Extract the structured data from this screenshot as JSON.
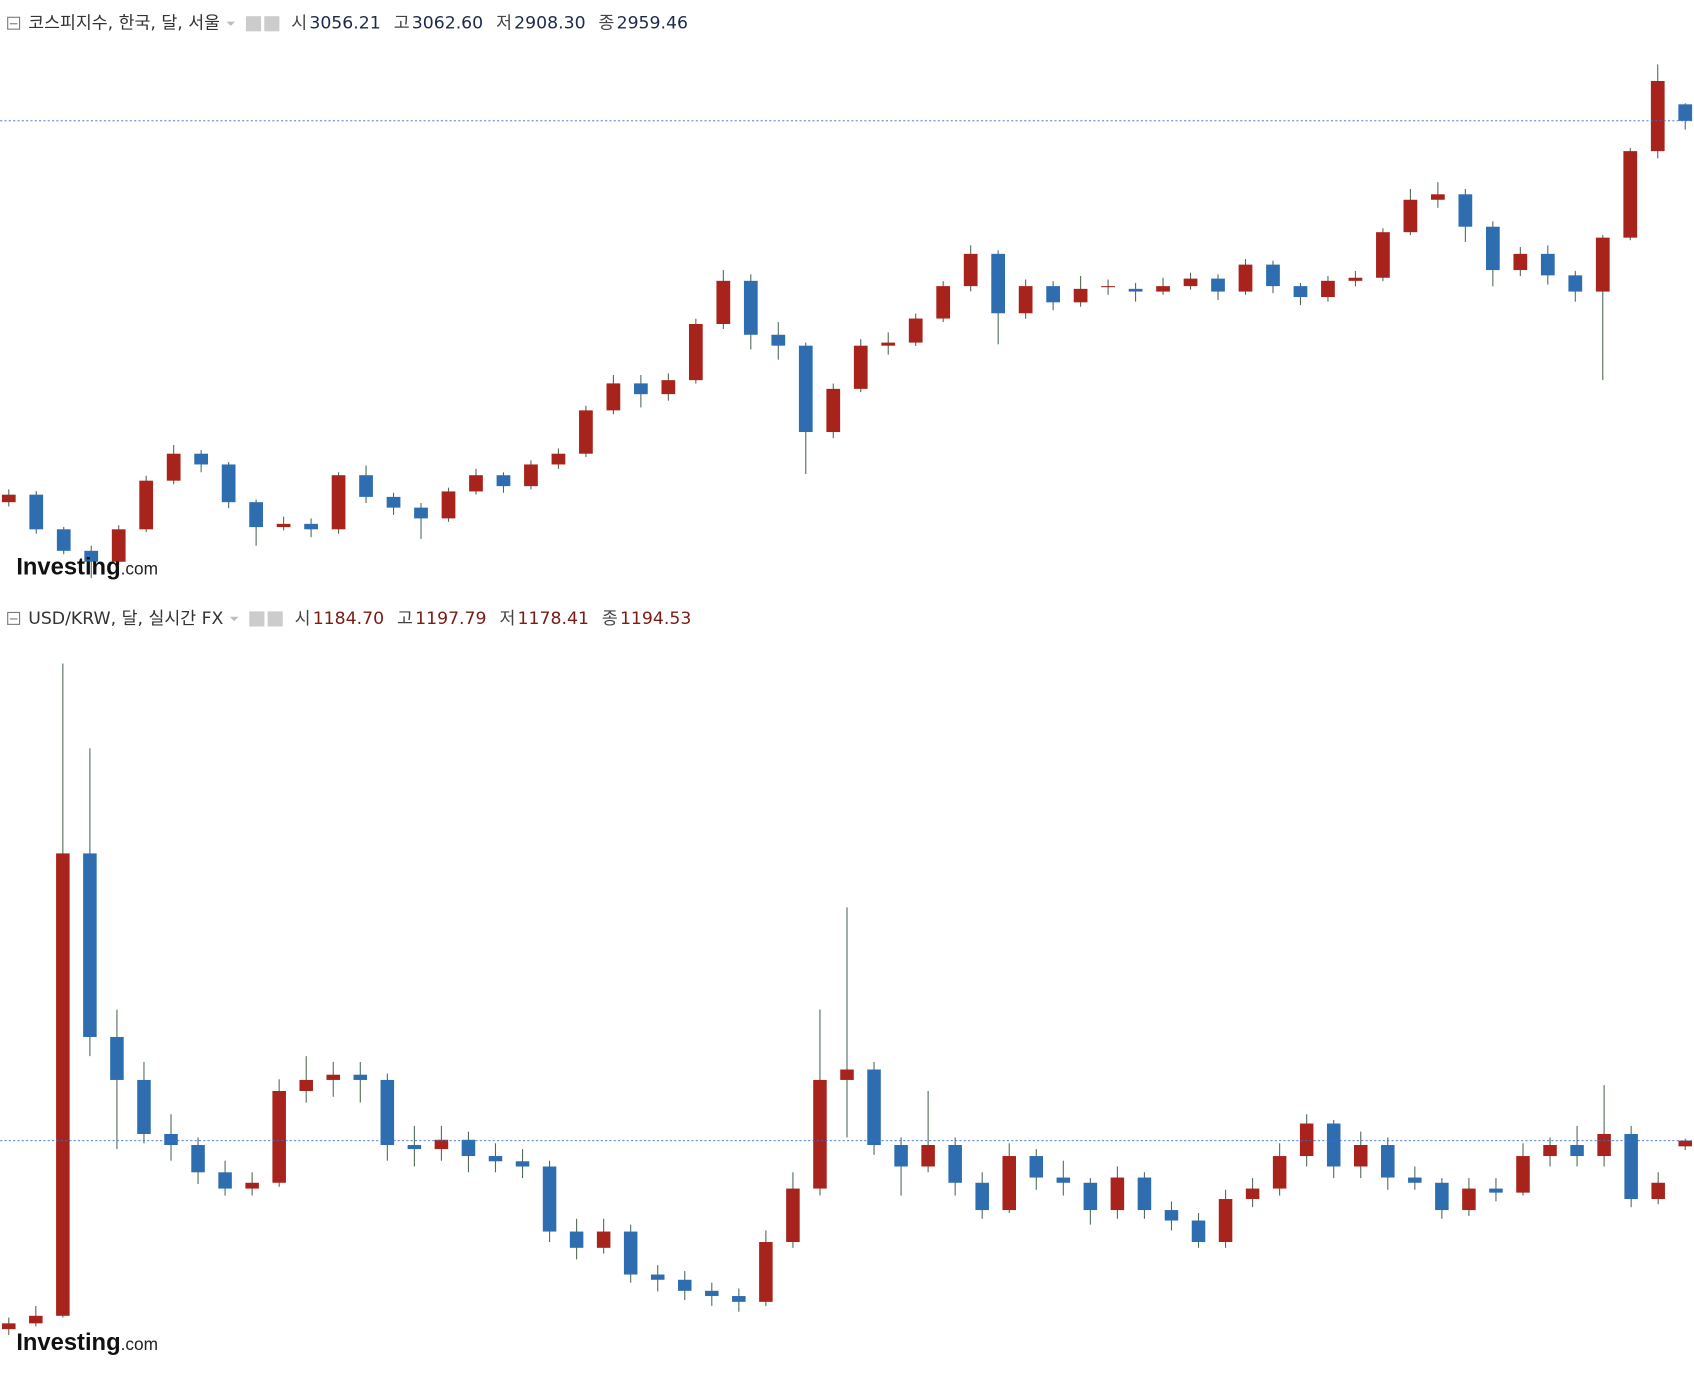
{
  "chart_data": [
    {
      "type": "candlestick",
      "title": "코스피지수, 한국, 달, 서울",
      "header_keys": [
        "시",
        "고",
        "저",
        "종"
      ],
      "header_values": [
        "3056.21",
        "3062.60",
        "2908.30",
        "2959.46"
      ],
      "header_color": "#1c2b4a",
      "open": [
        725,
        769,
        566,
        440,
        376,
        566,
        851,
        1009,
        946,
        725,
        579,
        598,
        566,
        883,
        756,
        693,
        630,
        788,
        883,
        819,
        946,
        1009,
        1263,
        1421,
        1358,
        1440,
        1769,
        2022,
        1706,
        1642,
        1136,
        1389,
        1642,
        1660,
        1801,
        1991,
        2180,
        1832,
        1991,
        1896,
        1991,
        1975,
        1959,
        1991,
        2035,
        1959,
        2117,
        1991,
        1927,
        2022,
        2040,
        2307,
        2497,
        2529,
        2339,
        2085,
        2180,
        2054,
        1959,
        2275,
        2782,
        3056.21
      ],
      "high": [
        800,
        790,
        580,
        470,
        590,
        880,
        1060,
        1030,
        960,
        740,
        640,
        630,
        900,
        940,
        780,
        720,
        810,
        920,
        900,
        970,
        1040,
        1290,
        1470,
        1470,
        1480,
        1800,
        2085,
        2060,
        1780,
        1660,
        1420,
        1680,
        1720,
        1830,
        2020,
        2230,
        2200,
        2030,
        2020,
        2050,
        2030,
        2010,
        2040,
        2070,
        2060,
        2150,
        2140,
        2010,
        2050,
        2080,
        2330,
        2560,
        2600,
        2560,
        2370,
        2220,
        2230,
        2080,
        2290,
        2800,
        3290,
        3062.6
      ],
      "low": [
        700,
        540,
        420,
        280,
        360,
        550,
        830,
        900,
        690,
        470,
        560,
        520,
        540,
        720,
        650,
        510,
        610,
        770,
        780,
        800,
        920,
        990,
        1240,
        1280,
        1320,
        1420,
        1740,
        1620,
        1560,
        890,
        1100,
        1370,
        1590,
        1640,
        1780,
        1960,
        1650,
        1800,
        1850,
        1870,
        1940,
        1900,
        1940,
        1970,
        1910,
        1940,
        1950,
        1880,
        1900,
        1990,
        2020,
        2290,
        2450,
        2250,
        1990,
        2050,
        2000,
        1900,
        1440,
        2260,
        2740,
        2908.3
      ],
      "close": [
        769,
        566,
        440,
        376,
        566,
        851,
        1009,
        946,
        725,
        579,
        598,
        566,
        883,
        756,
        693,
        630,
        788,
        883,
        819,
        946,
        1009,
        1263,
        1421,
        1358,
        1440,
        1769,
        2022,
        1706,
        1642,
        1136,
        1389,
        1642,
        1660,
        1801,
        1991,
        2180,
        1832,
        1991,
        1896,
        1975,
        1991,
        1959,
        1991,
        2035,
        1959,
        2117,
        1991,
        1927,
        2022,
        2040,
        2307,
        2497,
        2529,
        2339,
        2085,
        2180,
        2054,
        1959,
        2275,
        2782,
        3193,
        2959.46
      ],
      "ylim": [
        218,
        3446
      ],
      "up_color": "#a8231c",
      "down_color": "#2e6db0",
      "wick_color": "#4f6b55",
      "watermark_brand": "Investing",
      "watermark_suffix": ".com"
    },
    {
      "type": "candlestick",
      "title": "USD/KRW, 달, 실시간 FX",
      "header_keys": [
        "시",
        "고",
        "저",
        "종"
      ],
      "header_values": [
        "1184.70",
        "1197.79",
        "1178.41",
        "1194.53"
      ],
      "header_color": "#7a1c14",
      "open": [
        870,
        880,
        893,
        1689,
        1373,
        1299,
        1206,
        1187,
        1140,
        1112,
        1122,
        1280,
        1299,
        1308,
        1299,
        1187,
        1180,
        1196,
        1168,
        1159,
        1150,
        1038,
        1010,
        1038,
        964,
        955,
        936,
        927,
        917,
        1020,
        1112,
        1299,
        1317,
        1187,
        1150,
        1187,
        1122,
        1075,
        1168,
        1131,
        1122,
        1075,
        1131,
        1075,
        1057,
        1020,
        1094,
        1112,
        1168,
        1224,
        1150,
        1187,
        1131,
        1122,
        1075,
        1112,
        1105,
        1168,
        1187,
        1168,
        1206,
        1094,
        1184.7
      ],
      "high": [
        890,
        910,
        2016,
        1870,
        1420,
        1330,
        1240,
        1200,
        1160,
        1140,
        1300,
        1340,
        1330,
        1330,
        1310,
        1220,
        1220,
        1210,
        1190,
        1180,
        1160,
        1060,
        1060,
        1050,
        980,
        970,
        950,
        940,
        1040,
        1140,
        1420,
        1596,
        1330,
        1200,
        1280,
        1200,
        1140,
        1190,
        1180,
        1160,
        1130,
        1150,
        1140,
        1090,
        1070,
        1110,
        1130,
        1190,
        1240,
        1230,
        1210,
        1200,
        1150,
        1130,
        1130,
        1130,
        1190,
        1200,
        1220,
        1290,
        1220,
        1140,
        1197.79
      ],
      "low": [
        860,
        875,
        890,
        1340,
        1180,
        1190,
        1160,
        1120,
        1100,
        1100,
        1115,
        1260,
        1270,
        1260,
        1160,
        1150,
        1160,
        1140,
        1140,
        1130,
        1020,
        990,
        1000,
        950,
        935,
        920,
        910,
        900,
        910,
        1010,
        1100,
        1200,
        1170,
        1100,
        1140,
        1100,
        1060,
        1070,
        1110,
        1100,
        1050,
        1060,
        1060,
        1040,
        1010,
        1010,
        1080,
        1100,
        1150,
        1130,
        1130,
        1110,
        1110,
        1060,
        1065,
        1090,
        1100,
        1150,
        1150,
        1150,
        1080,
        1085,
        1178.41
      ],
      "close": [
        880,
        893,
        1689,
        1373,
        1299,
        1206,
        1187,
        1140,
        1112,
        1122,
        1280,
        1299,
        1308,
        1299,
        1187,
        1180,
        1196,
        1168,
        1159,
        1150,
        1038,
        1010,
        1038,
        964,
        955,
        936,
        927,
        917,
        1020,
        1112,
        1299,
        1317,
        1187,
        1150,
        1187,
        1122,
        1075,
        1168,
        1131,
        1122,
        1075,
        1131,
        1075,
        1057,
        1020,
        1094,
        1112,
        1168,
        1224,
        1150,
        1187,
        1131,
        1122,
        1075,
        1112,
        1105,
        1168,
        1187,
        1168,
        1206,
        1094,
        1122,
        1194.53
      ],
      "ylim": [
        843,
        2061
      ],
      "up_color": "#a8231c",
      "down_color": "#2e6db0",
      "wick_color": "#4f6b55",
      "watermark_brand": "Investing",
      "watermark_suffix": ".com"
    }
  ]
}
